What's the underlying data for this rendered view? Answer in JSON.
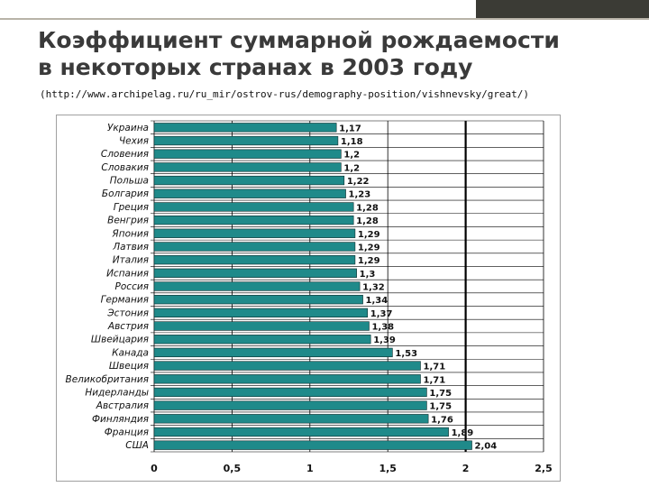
{
  "header": {
    "title_line1": "Коэффициент суммарной рождаемости",
    "title_line2": "в некоторых странах в 2003 году",
    "source": "(http://www.archipelag.ru/ru_mir/ostrov-rus/demography-position/vishnevsky/great/)"
  },
  "colors": {
    "bar_fill": "#1f8a8a",
    "bar_stroke": "#0d2b2b",
    "reference_line": "#000000",
    "grid": "#000000"
  },
  "chart_data": {
    "type": "bar",
    "orientation": "horizontal",
    "categories": [
      "Украина",
      "Чехия",
      "Словения",
      "Словакия",
      "Польша",
      "Болгария",
      "Греция",
      "Венгрия",
      "Япония",
      "Латвия",
      "Италия",
      "Испания",
      "Россия",
      "Германия",
      "Эстония",
      "Австрия",
      "Швейцария",
      "Канада",
      "Швеция",
      "Великобритания",
      "Нидерланды",
      "Австралия",
      "Финляндия",
      "Франция",
      "США"
    ],
    "values": [
      1.17,
      1.18,
      1.2,
      1.2,
      1.22,
      1.23,
      1.28,
      1.28,
      1.29,
      1.29,
      1.29,
      1.3,
      1.32,
      1.34,
      1.37,
      1.38,
      1.39,
      1.53,
      1.71,
      1.71,
      1.75,
      1.75,
      1.76,
      1.89,
      2.04
    ],
    "value_labels": [
      "1,17",
      "1,18",
      "1,2",
      "1,2",
      "1,22",
      "1,23",
      "1,28",
      "1,28",
      "1,29",
      "1,29",
      "1,29",
      "1,3",
      "1,32",
      "1,34",
      "1,37",
      "1,38",
      "1,39",
      "1,53",
      "1,71",
      "1,71",
      "1,75",
      "1,75",
      "1,76",
      "1,89",
      "2,04"
    ],
    "x_ticks": [
      0,
      0.5,
      1,
      1.5,
      2,
      2.5
    ],
    "x_tick_labels": [
      "0",
      "0,5",
      "1",
      "1,5",
      "2",
      "2,5"
    ],
    "xlim": [
      0,
      2.5
    ],
    "reference_line": 2,
    "grid": true,
    "title": "",
    "xlabel": "",
    "ylabel": ""
  }
}
